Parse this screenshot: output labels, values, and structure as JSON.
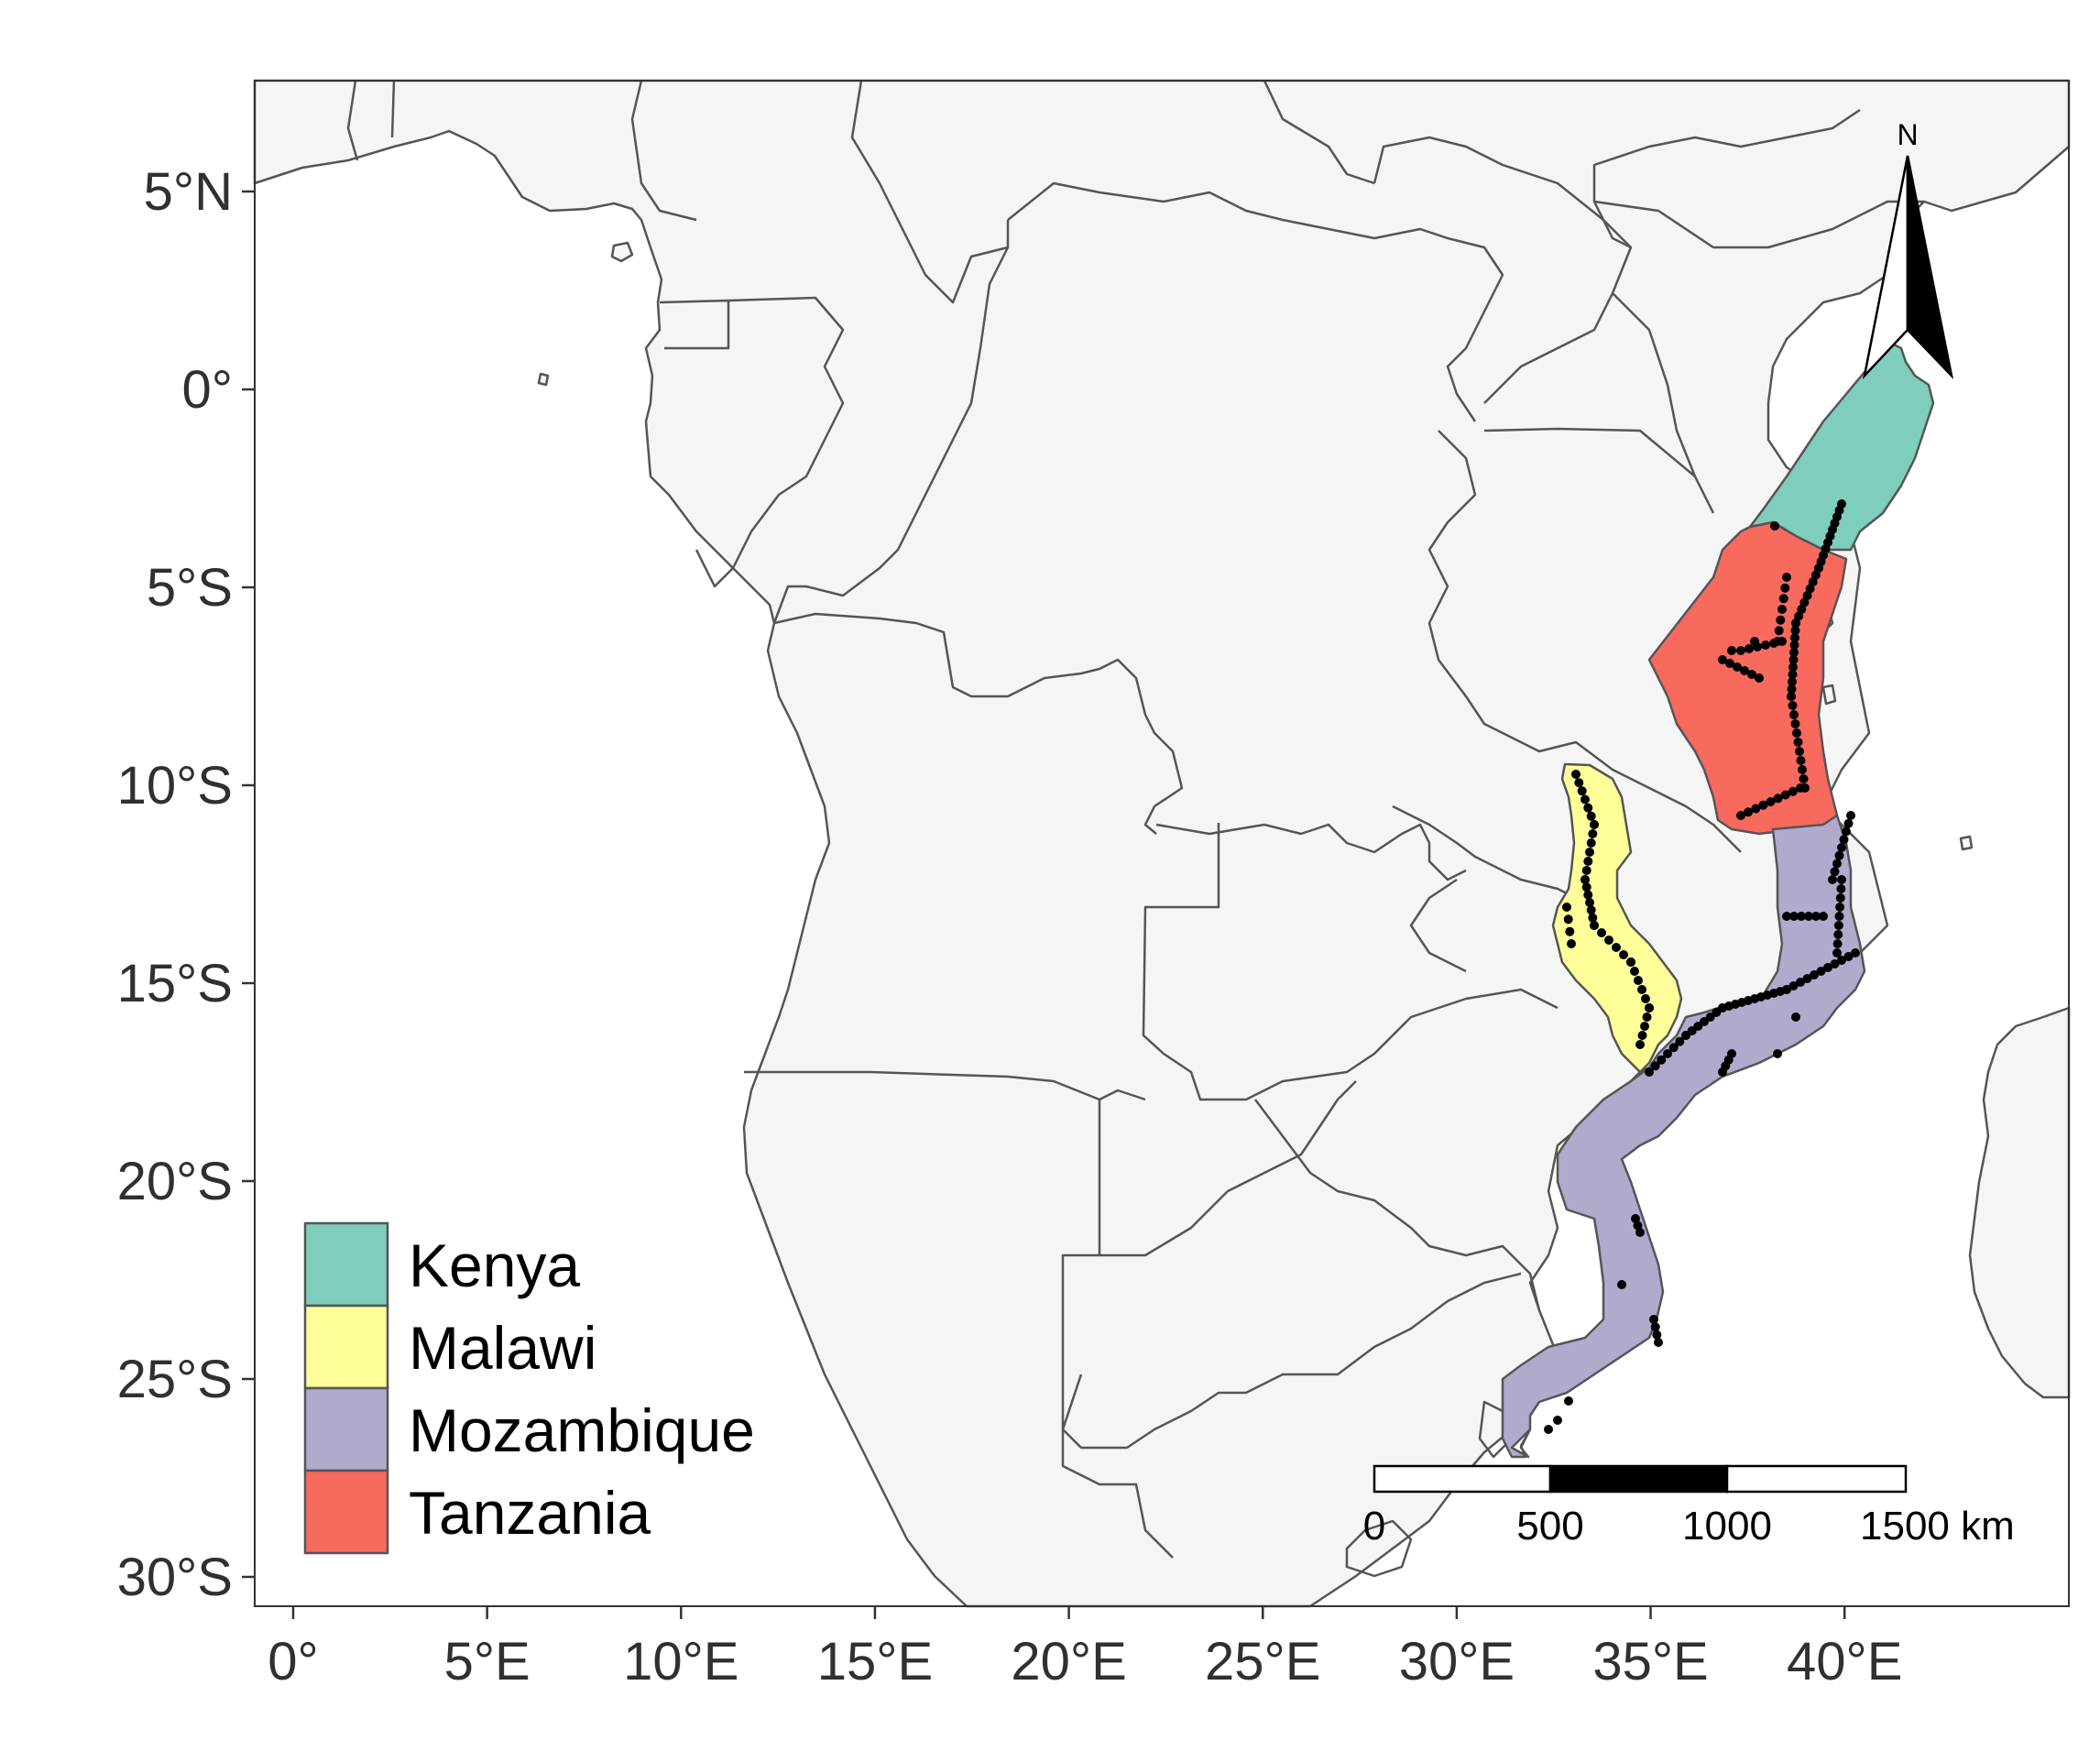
{
  "map": {
    "axes": {
      "y_ticks": [
        {
          "label": "5°N",
          "lat": 5
        },
        {
          "label": "0°",
          "lat": 0
        },
        {
          "label": "5°S",
          "lat": -5
        },
        {
          "label": "10°S",
          "lat": -10
        },
        {
          "label": "15°S",
          "lat": -15
        },
        {
          "label": "20°S",
          "lat": -20
        },
        {
          "label": "25°S",
          "lat": -25
        },
        {
          "label": "30°S",
          "lat": -30
        }
      ],
      "x_ticks": [
        {
          "label": "0°",
          "lon": 0
        },
        {
          "label": "5°E",
          "lon": 5
        },
        {
          "label": "10°E",
          "lon": 10
        },
        {
          "label": "15°E",
          "lon": 15
        },
        {
          "label": "20°E",
          "lon": 20
        },
        {
          "label": "25°E",
          "lon": 25
        },
        {
          "label": "30°E",
          "lon": 30
        },
        {
          "label": "35°E",
          "lon": 35
        },
        {
          "label": "40°E",
          "lon": 40
        }
      ]
    },
    "legend": {
      "position": "bottom-left",
      "items": [
        {
          "label": "Kenya",
          "color": "#7FCDBB"
        },
        {
          "label": "Malawi",
          "color": "#FFFF99"
        },
        {
          "label": "Mozambique",
          "color": "#B0AACD"
        },
        {
          "label": "Tanzania",
          "color": "#F8695E"
        }
      ]
    },
    "scale_bar": {
      "labels": [
        "0",
        "500",
        "1000",
        "1500 km"
      ]
    },
    "north_arrow": {
      "label": "N"
    },
    "colors": {
      "land": "#F5F5F5",
      "border": "#555555",
      "points": "#000000"
    }
  }
}
